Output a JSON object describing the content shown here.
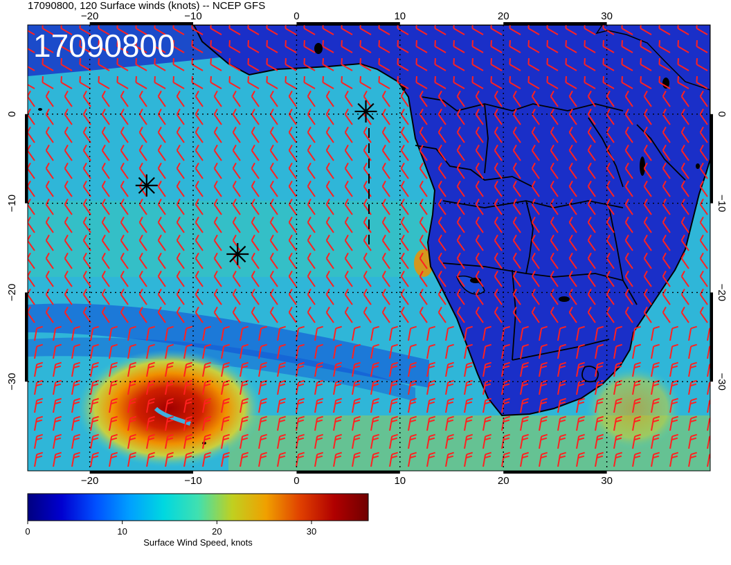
{
  "title": "17090800, 120 Surface winds (knots) -- NCEP GFS",
  "stamp": "17090800",
  "map": {
    "lon_range": [
      -26,
      40
    ],
    "lat_range": [
      -40,
      10
    ],
    "lon_ticks": [
      -20,
      -10,
      0,
      10,
      20,
      30
    ],
    "lat_ticks": [
      0,
      -10,
      -20,
      -30
    ],
    "lon_tick_labels": [
      "−20",
      "−10",
      "0",
      "10",
      "20",
      "30"
    ],
    "lat_tick_labels": [
      "0",
      "−10",
      "−20",
      "−30"
    ]
  },
  "markers": [
    {
      "lon": -14.5,
      "lat": -8.0
    },
    {
      "lon": -5.7,
      "lat": -15.7
    },
    {
      "lon": 6.7,
      "lat": 0.3
    }
  ],
  "colorbar": {
    "label": "Surface Wind Speed, knots",
    "min": 0,
    "max": 36,
    "ticks": [
      0,
      10,
      20,
      30
    ],
    "tick_labels": [
      "0",
      "10",
      "20",
      "30"
    ],
    "colors": [
      "#000080",
      "#0000d0",
      "#0050ff",
      "#00a0ff",
      "#00d8e0",
      "#40e0b0",
      "#c0d020",
      "#f0a000",
      "#e04000",
      "#b00000",
      "#700000"
    ]
  },
  "colors": {
    "ocean": "#2fb6d8",
    "land": "#1a2fc8",
    "barb": "#ff2020",
    "coast": "#000000"
  }
}
